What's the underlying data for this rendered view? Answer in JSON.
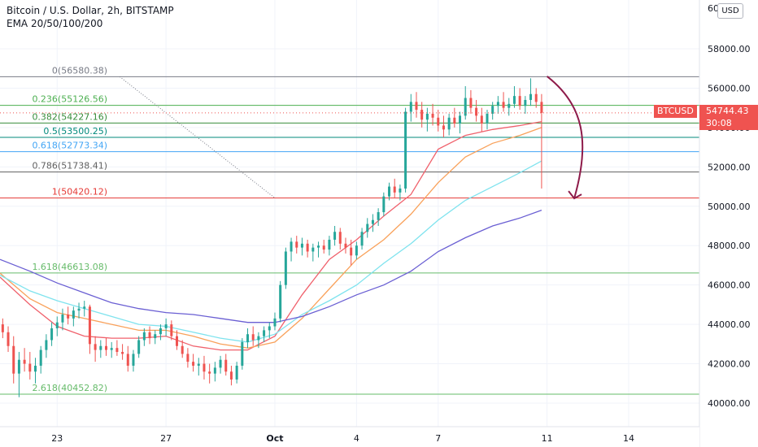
{
  "header": {
    "title": "Bitcoin / U.S. Dollar, 2h, BITSTAMP",
    "indicator": "EMA 20/50/100/200"
  },
  "axis": {
    "currency": "USD",
    "symbol": "BTCUSD",
    "last_price": "54744.43",
    "countdown": "30:08",
    "top_partial_label": "60"
  },
  "colors": {
    "up": "#26a69a",
    "down": "#ef5350",
    "ema20": "#f0616c",
    "ema50": "#f9a15a",
    "ema100": "#7fe3ee",
    "ema200": "#6a5fd3",
    "arrow": "#8e1b4a"
  },
  "chart_data": {
    "type": "candlestick",
    "symbol": "BTCUSD",
    "timeframe": "2h",
    "exchange": "BITSTAMP",
    "y_range": [
      39400,
      60000
    ],
    "y_ticks": [
      "40000.00",
      "42000.00",
      "44000.00",
      "46000.00",
      "48000.00",
      "50000.00",
      "52000.00",
      "54000.00",
      "56000.00",
      "58000.00"
    ],
    "y_tick_values": [
      40000,
      42000,
      44000,
      46000,
      48000,
      50000,
      52000,
      54000,
      56000,
      58000
    ],
    "x_ticks": [
      "23",
      "27",
      "Oct",
      "4",
      "7",
      "11",
      "14"
    ],
    "x_tick_days": [
      23,
      27,
      31,
      34,
      37,
      41,
      44
    ],
    "x_day_range": [
      20.9,
      46.6
    ],
    "fib_levels": [
      {
        "label": "0(56580.38)",
        "price": 56580.38,
        "color": "#787b86"
      },
      {
        "label": "0.236(55126.56)",
        "price": 55126.56,
        "color": "#4caf50"
      },
      {
        "label": "0.382(54227.16)",
        "price": 54227.16,
        "color": "#388e3c"
      },
      {
        "label": "0.5(53500.25)",
        "price": 53500.25,
        "color": "#00897b"
      },
      {
        "label": "0.618(52773.34)",
        "price": 52773.34,
        "color": "#42a5f5"
      },
      {
        "label": "0.786(51738.41)",
        "price": 51738.41,
        "color": "#616161"
      },
      {
        "label": "1(50420.12)",
        "price": 50420.12,
        "color": "#e53935"
      },
      {
        "label": "1.618(46613.08)",
        "price": 46613.08,
        "color": "#66bb6a"
      },
      {
        "label": "2.618(40452.82)",
        "price": 40452.82,
        "color": "#66bb6a"
      }
    ],
    "ema_series": [
      {
        "period": 20,
        "points": [
          [
            20.9,
            46400
          ],
          [
            22,
            45000
          ],
          [
            23,
            43900
          ],
          [
            24,
            43400
          ],
          [
            25,
            43300
          ],
          [
            26,
            43300
          ],
          [
            27,
            43400
          ],
          [
            28,
            42900
          ],
          [
            29,
            42700
          ],
          [
            30,
            42700
          ],
          [
            31,
            43400
          ],
          [
            32,
            45500
          ],
          [
            33,
            47300
          ],
          [
            34,
            48300
          ],
          [
            35,
            49500
          ],
          [
            36,
            50600
          ],
          [
            37,
            52900
          ],
          [
            38,
            53600
          ],
          [
            39,
            53900
          ],
          [
            40,
            54100
          ],
          [
            40.8,
            54300
          ]
        ]
      },
      {
        "period": 50,
        "points": [
          [
            20.9,
            46600
          ],
          [
            22,
            45300
          ],
          [
            23,
            44600
          ],
          [
            24,
            44300
          ],
          [
            25,
            44000
          ],
          [
            26,
            43700
          ],
          [
            27,
            43700
          ],
          [
            28,
            43400
          ],
          [
            29,
            43000
          ],
          [
            30,
            42800
          ],
          [
            31,
            43100
          ],
          [
            32,
            44300
          ],
          [
            33,
            45800
          ],
          [
            34,
            47300
          ],
          [
            35,
            48300
          ],
          [
            36,
            49600
          ],
          [
            37,
            51200
          ],
          [
            38,
            52500
          ],
          [
            39,
            53200
          ],
          [
            40,
            53600
          ],
          [
            40.8,
            54000
          ]
        ]
      },
      {
        "period": 100,
        "points": [
          [
            20.9,
            46500
          ],
          [
            22,
            45700
          ],
          [
            23,
            45200
          ],
          [
            24,
            44800
          ],
          [
            25,
            44400
          ],
          [
            26,
            44000
          ],
          [
            27,
            43900
          ],
          [
            28,
            43600
          ],
          [
            29,
            43300
          ],
          [
            30,
            43100
          ],
          [
            31,
            43500
          ],
          [
            32,
            44500
          ],
          [
            33,
            45200
          ],
          [
            34,
            46000
          ],
          [
            35,
            47100
          ],
          [
            36,
            48100
          ],
          [
            37,
            49300
          ],
          [
            38,
            50300
          ],
          [
            39,
            51000
          ],
          [
            40,
            51700
          ],
          [
            40.8,
            52300
          ]
        ]
      },
      {
        "period": 200,
        "points": [
          [
            20.9,
            47300
          ],
          [
            22,
            46700
          ],
          [
            23,
            46100
          ],
          [
            24,
            45600
          ],
          [
            25,
            45100
          ],
          [
            26,
            44800
          ],
          [
            27,
            44600
          ],
          [
            28,
            44500
          ],
          [
            29,
            44300
          ],
          [
            30,
            44100
          ],
          [
            31,
            44100
          ],
          [
            32,
            44400
          ],
          [
            33,
            44900
          ],
          [
            34,
            45500
          ],
          [
            35,
            46000
          ],
          [
            36,
            46700
          ],
          [
            37,
            47700
          ],
          [
            38,
            48400
          ],
          [
            39,
            49000
          ],
          [
            40,
            49400
          ],
          [
            40.8,
            49800
          ]
        ]
      }
    ],
    "candles": [
      [
        21.0,
        44000,
        44300,
        43300,
        43600
      ],
      [
        21.2,
        43600,
        43900,
        42600,
        42900
      ],
      [
        21.4,
        42900,
        43400,
        41000,
        41500
      ],
      [
        21.6,
        41500,
        42600,
        40300,
        42200
      ],
      [
        21.8,
        42200,
        42800,
        41600,
        42000
      ],
      [
        22.0,
        42000,
        42600,
        41200,
        41600
      ],
      [
        22.2,
        41600,
        42300,
        41000,
        41900
      ],
      [
        22.4,
        41900,
        42900,
        41500,
        42700
      ],
      [
        22.6,
        42700,
        43500,
        42300,
        43200
      ],
      [
        22.8,
        43200,
        44100,
        42900,
        43800
      ],
      [
        23.0,
        43800,
        44400,
        43400,
        44100
      ],
      [
        23.2,
        44100,
        44800,
        43700,
        44500
      ],
      [
        23.4,
        44500,
        44900,
        44000,
        44300
      ],
      [
        23.6,
        44300,
        44900,
        43900,
        44700
      ],
      [
        23.8,
        44700,
        45100,
        44300,
        44800
      ],
      [
        24.0,
        44800,
        45200,
        44400,
        44900
      ],
      [
        24.2,
        44900,
        45000,
        42500,
        43000
      ],
      [
        24.4,
        43000,
        43400,
        42100,
        42700
      ],
      [
        24.6,
        42700,
        43200,
        42300,
        42900
      ],
      [
        24.8,
        42900,
        43300,
        42400,
        42700
      ],
      [
        25.0,
        42700,
        43100,
        42300,
        42800
      ],
      [
        25.2,
        42800,
        43200,
        42400,
        42600
      ],
      [
        25.4,
        42600,
        43000,
        42200,
        42500
      ],
      [
        25.6,
        42500,
        42900,
        41600,
        41900
      ],
      [
        25.8,
        41900,
        42700,
        41600,
        42500
      ],
      [
        26.0,
        42500,
        43400,
        42300,
        43200
      ],
      [
        26.2,
        43200,
        43800,
        42900,
        43600
      ],
      [
        26.4,
        43600,
        43900,
        43000,
        43300
      ],
      [
        26.6,
        43300,
        43700,
        43000,
        43500
      ],
      [
        26.8,
        43500,
        44000,
        43200,
        43800
      ],
      [
        27.0,
        43800,
        44300,
        43400,
        44000
      ],
      [
        27.2,
        44000,
        44200,
        43200,
        43400
      ],
      [
        27.4,
        43400,
        43700,
        42700,
        42900
      ],
      [
        27.6,
        42900,
        43200,
        42300,
        42500
      ],
      [
        27.8,
        42500,
        42800,
        41800,
        42100
      ],
      [
        28.0,
        42100,
        42500,
        41600,
        41900
      ],
      [
        28.2,
        41900,
        42300,
        41400,
        42000
      ],
      [
        28.4,
        42000,
        42400,
        41200,
        41600
      ],
      [
        28.6,
        41600,
        42000,
        41000,
        41500
      ],
      [
        28.8,
        41500,
        42100,
        41100,
        41800
      ],
      [
        29.0,
        41800,
        42400,
        41500,
        42200
      ],
      [
        29.2,
        42200,
        42500,
        41400,
        41600
      ],
      [
        29.4,
        41600,
        41900,
        40900,
        41200
      ],
      [
        29.6,
        41200,
        42100,
        41000,
        41900
      ],
      [
        29.8,
        41900,
        43300,
        41700,
        43100
      ],
      [
        30.0,
        43100,
        43800,
        42800,
        43500
      ],
      [
        30.2,
        43500,
        43900,
        42900,
        43200
      ],
      [
        30.4,
        43200,
        43600,
        42800,
        43400
      ],
      [
        30.6,
        43400,
        43900,
        43100,
        43700
      ],
      [
        30.8,
        43700,
        44100,
        43300,
        43900
      ],
      [
        31.0,
        43900,
        44600,
        43700,
        44300
      ],
      [
        31.2,
        44300,
        46200,
        44100,
        46000
      ],
      [
        31.4,
        46000,
        47900,
        45800,
        47700
      ],
      [
        31.6,
        47700,
        48400,
        47200,
        48200
      ],
      [
        31.8,
        48200,
        48500,
        47600,
        47900
      ],
      [
        32.0,
        47900,
        48400,
        47500,
        48100
      ],
      [
        32.2,
        48100,
        48300,
        47400,
        47700
      ],
      [
        32.4,
        47700,
        48100,
        47200,
        47900
      ],
      [
        32.6,
        47900,
        48200,
        47400,
        48000
      ],
      [
        32.8,
        48000,
        48300,
        47600,
        47800
      ],
      [
        33.0,
        47800,
        48500,
        47500,
        48300
      ],
      [
        33.2,
        48300,
        49000,
        48000,
        48700
      ],
      [
        33.4,
        48700,
        48900,
        47800,
        48100
      ],
      [
        33.6,
        48100,
        48400,
        47600,
        47900
      ],
      [
        33.8,
        47900,
        48300,
        47000,
        47500
      ],
      [
        34.0,
        47500,
        48200,
        47300,
        48000
      ],
      [
        34.2,
        48000,
        48900,
        47800,
        48700
      ],
      [
        34.4,
        48700,
        49400,
        48400,
        49100
      ],
      [
        34.6,
        49100,
        49600,
        48700,
        49300
      ],
      [
        34.8,
        49300,
        49900,
        49000,
        49700
      ],
      [
        35.0,
        49700,
        50700,
        49500,
        50500
      ],
      [
        35.2,
        50500,
        51200,
        50300,
        51000
      ],
      [
        35.4,
        51000,
        51400,
        50400,
        50700
      ],
      [
        35.6,
        50700,
        51100,
        50300,
        50900
      ],
      [
        35.8,
        50900,
        55000,
        50700,
        54800
      ],
      [
        36.0,
        54800,
        55700,
        54300,
        55300
      ],
      [
        36.2,
        55300,
        55800,
        54500,
        54900
      ],
      [
        36.4,
        54900,
        55300,
        54000,
        54400
      ],
      [
        36.6,
        54400,
        55000,
        53800,
        54700
      ],
      [
        36.8,
        54700,
        55200,
        54100,
        54500
      ],
      [
        37.0,
        54500,
        54900,
        53800,
        54100
      ],
      [
        37.2,
        54100,
        54600,
        53500,
        53900
      ],
      [
        37.4,
        53900,
        54700,
        53600,
        54500
      ],
      [
        37.6,
        54500,
        55000,
        54000,
        54200
      ],
      [
        37.8,
        54200,
        54800,
        53700,
        54600
      ],
      [
        38.0,
        54600,
        56100,
        54400,
        55500
      ],
      [
        38.2,
        55500,
        55900,
        54700,
        55000
      ],
      [
        38.4,
        55000,
        55400,
        54300,
        54600
      ],
      [
        38.6,
        54600,
        55000,
        53800,
        54200
      ],
      [
        38.8,
        54200,
        54900,
        53900,
        54700
      ],
      [
        39.0,
        54700,
        55300,
        54400,
        55100
      ],
      [
        39.2,
        55100,
        55600,
        54700,
        55300
      ],
      [
        39.4,
        55300,
        55800,
        54800,
        55000
      ],
      [
        39.6,
        55000,
        55500,
        54600,
        55200
      ],
      [
        39.8,
        55200,
        56100,
        55000,
        55600
      ],
      [
        40.0,
        55600,
        56000,
        54900,
        55100
      ],
      [
        40.2,
        55100,
        55600,
        54700,
        55400
      ],
      [
        40.4,
        55400,
        56500,
        55100,
        55700
      ],
      [
        40.6,
        55700,
        56000,
        55000,
        55300
      ],
      [
        40.8,
        55300,
        55700,
        50900,
        54744
      ]
    ],
    "annotations": [
      {
        "type": "dotted-trendline",
        "from": [
          25.3,
          56580
        ],
        "to": [
          31.0,
          50420
        ]
      },
      {
        "type": "curved-arrow",
        "from": [
          41.0,
          56600
        ],
        "to": [
          42.0,
          50400
        ]
      }
    ]
  }
}
